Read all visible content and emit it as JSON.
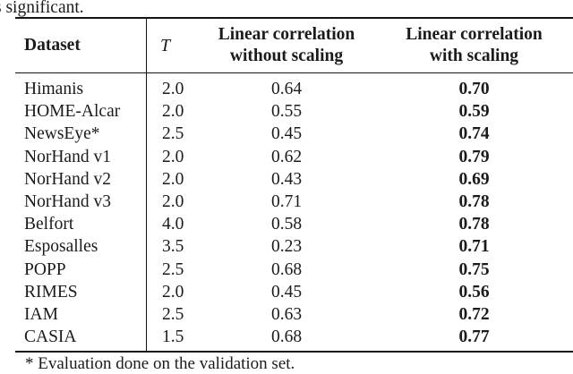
{
  "caption_fragment": "s significant.",
  "table": {
    "headers": {
      "dataset": "Dataset",
      "t_symbol": "T",
      "col3_line1": "Linear correlation",
      "col3_line2": "without scaling",
      "col4_line1": "Linear correlation",
      "col4_line2": "with scaling"
    },
    "rows": [
      {
        "dataset": "Himanis",
        "t": "2.0",
        "without_scaling": "0.64",
        "with_scaling": "0.70"
      },
      {
        "dataset": "HOME-Alcar",
        "t": "2.0",
        "without_scaling": "0.55",
        "with_scaling": "0.59"
      },
      {
        "dataset": "NewsEye*",
        "t": "2.5",
        "without_scaling": "0.45",
        "with_scaling": "0.74"
      },
      {
        "dataset": "NorHand v1",
        "t": "2.0",
        "without_scaling": "0.62",
        "with_scaling": "0.79"
      },
      {
        "dataset": "NorHand v2",
        "t": "2.0",
        "without_scaling": "0.43",
        "with_scaling": "0.69"
      },
      {
        "dataset": "NorHand v3",
        "t": "2.0",
        "without_scaling": "0.71",
        "with_scaling": "0.78"
      },
      {
        "dataset": "Belfort",
        "t": "4.0",
        "without_scaling": "0.58",
        "with_scaling": "0.78"
      },
      {
        "dataset": "Esposalles",
        "t": "3.5",
        "without_scaling": "0.23",
        "with_scaling": "0.71"
      },
      {
        "dataset": "POPP",
        "t": "2.5",
        "without_scaling": "0.68",
        "with_scaling": "0.75"
      },
      {
        "dataset": "RIMES",
        "t": "2.0",
        "without_scaling": "0.45",
        "with_scaling": "0.56"
      },
      {
        "dataset": "IAM",
        "t": "2.5",
        "without_scaling": "0.63",
        "with_scaling": "0.72"
      },
      {
        "dataset": "CASIA",
        "t": "1.5",
        "without_scaling": "0.68",
        "with_scaling": "0.77"
      }
    ],
    "footnote": "* Evaluation done on the validation set."
  },
  "colors": {
    "text": "#1b1b1b",
    "rule": "#141414",
    "background": "#ffffff"
  }
}
